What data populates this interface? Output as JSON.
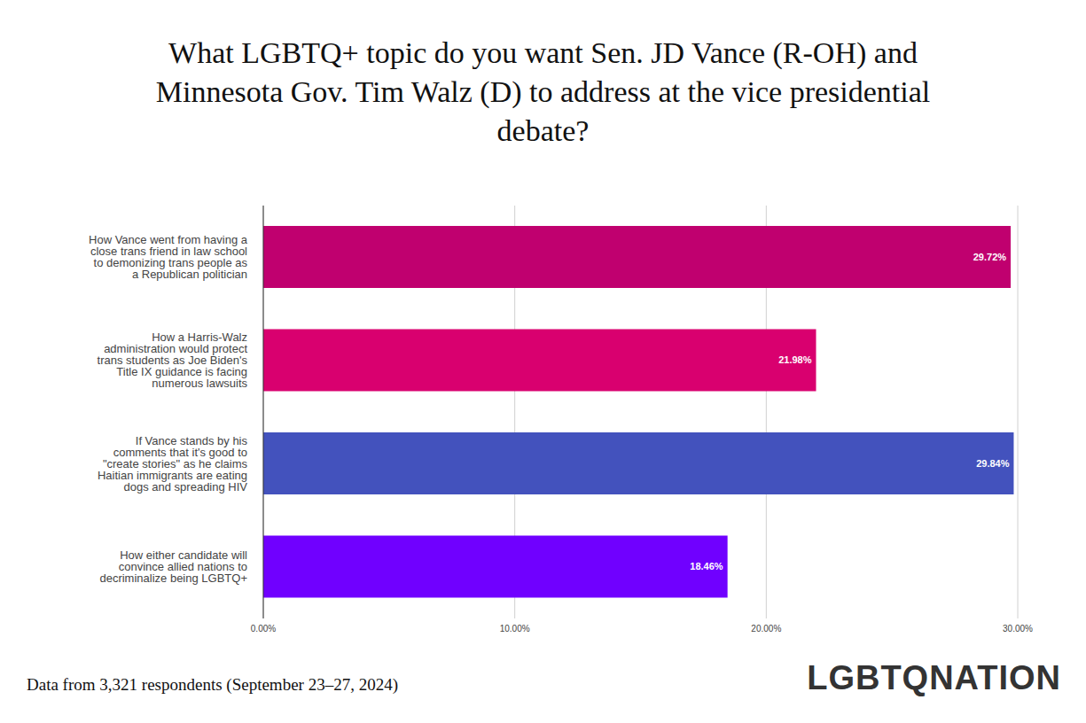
{
  "chart_data": {
    "type": "bar",
    "orientation": "horizontal",
    "title": "What LGBTQ+ topic do you want Sen. JD Vance (R-OH) and Minnesota Gov. Tim Walz (D) to address at the vice presidential debate?",
    "categories": [
      "How Vance went from having a close trans friend in law school to demonizing trans people as a Republican politician",
      "How a Harris-Walz administration would protect trans students as Joe Biden's Title IX guidance is facing numerous lawsuits",
      "If Vance stands by his comments that it's good to \"create stories\" as he claims Haitian immigrants are eating dogs and spreading HIV",
      "How either candidate will convince allied nations to decriminalize being LGBTQ+"
    ],
    "values": [
      29.72,
      21.98,
      29.84,
      18.46
    ],
    "value_labels": [
      "29.72%",
      "21.98%",
      "29.84%",
      "18.46%"
    ],
    "colors": [
      "#c0006f",
      "#d9006f",
      "#4352bd",
      "#7000ff"
    ],
    "xlim": [
      0,
      30
    ],
    "xticks": [
      {
        "value": 0,
        "label": "0.00%"
      },
      {
        "value": 10,
        "label": "10.00%"
      },
      {
        "value": 20,
        "label": "20.00%"
      },
      {
        "value": 30,
        "label": "30.00%"
      }
    ],
    "grid": true,
    "data_labels": true,
    "annotations": [
      "Data from 3,321 respondents (September 23–27, 2024)",
      "LGBTQNATION"
    ]
  }
}
